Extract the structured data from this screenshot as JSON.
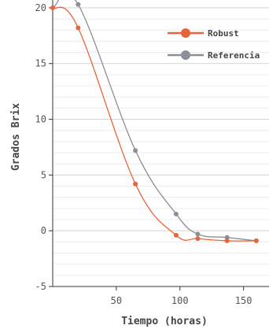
{
  "chart_data": {
    "type": "line",
    "xlabel": "Tiempo (horas)",
    "ylabel": "Grados Brix",
    "xlim": [
      0,
      170
    ],
    "ylim": [
      -5,
      20.7
    ],
    "xticks": [
      50,
      100,
      150
    ],
    "yticks": [
      -5,
      0,
      5,
      10,
      15,
      20
    ],
    "grid": true,
    "legend_position": "top-right",
    "series": [
      {
        "name": "Robust",
        "color": "#e8643c",
        "x": [
          0,
          20,
          65,
          97,
          114,
          137,
          160
        ],
        "y": [
          20,
          18.2,
          4.2,
          -0.4,
          -0.7,
          -0.9,
          -0.9
        ]
      },
      {
        "name": "Referencia",
        "color": "#8a8f98",
        "x": [
          0,
          20,
          65,
          97,
          114,
          137,
          160
        ],
        "y": [
          20,
          20.3,
          7.2,
          1.5,
          -0.3,
          -0.6,
          -0.9
        ]
      }
    ]
  }
}
